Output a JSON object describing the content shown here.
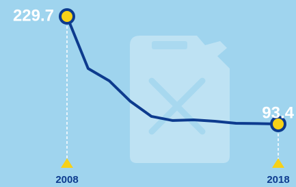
{
  "chart_data": {
    "type": "line",
    "categories": [
      "2008",
      null,
      null,
      null,
      null,
      null,
      null,
      null,
      null,
      null,
      "2018"
    ],
    "values": [
      229.7,
      163.7,
      148.1,
      122.1,
      103.0,
      97.8,
      98.6,
      96.9,
      94.3,
      93.9,
      93.4
    ],
    "color": "#0d3b8e",
    "marker_color": "#f7d117"
  }
}
